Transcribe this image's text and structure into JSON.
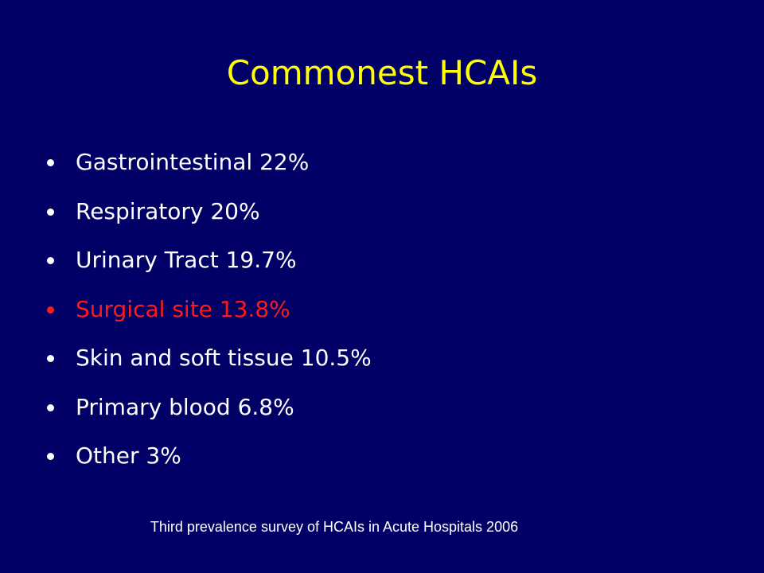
{
  "title": "Commonest HCAIs",
  "bullets": [
    "Gastrointestinal 22%",
    "Respiratory 20%",
    "Urinary Tract 19.7%",
    "Surgical site 13.8%",
    "Skin and soft tissue 10.5%",
    "Primary blood 6.8%",
    "Other 3%"
  ],
  "footnote": "Third prevalence survey of HCAIs in Acute Hospitals 2006"
}
